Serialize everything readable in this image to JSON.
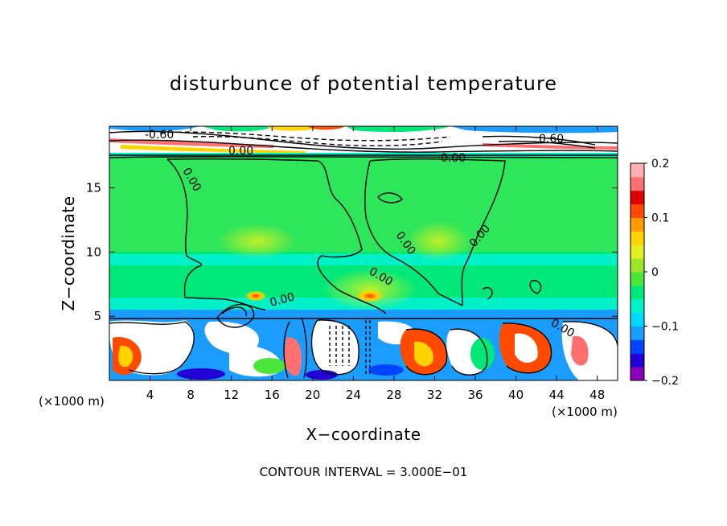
{
  "chart_data": {
    "type": "heatmap",
    "title": "disturbunce of potential temperature",
    "xlabel": "X−coordinate",
    "ylabel": "Z−coordinate",
    "x_unit_left": "(×1000 m)",
    "x_unit_right": "(×1000 m)",
    "xlim": [
      0,
      50
    ],
    "ylim": [
      0,
      19.8
    ],
    "x_ticks": [
      4,
      8,
      12,
      16,
      20,
      24,
      28,
      32,
      36,
      40,
      44,
      48
    ],
    "y_ticks": [
      5,
      10,
      15
    ],
    "colorbar": {
      "range": [
        -0.2,
        0.2
      ],
      "tick_values": [
        0.2,
        0.1,
        0,
        -0.1,
        -0.2
      ],
      "tick_labels": [
        "0.2",
        "0.1",
        "0",
        "−0.1",
        "−0.2"
      ],
      "colors": [
        "#8a00b8",
        "#2200d6",
        "#0044ff",
        "#1b9cff",
        "#00d8ff",
        "#00f0c8",
        "#00e87a",
        "#4be63a",
        "#9ee62b",
        "#e2f020",
        "#ffd400",
        "#ff9a00",
        "#ff4a00",
        "#e00000",
        "#ff7070",
        "#ffb0b0"
      ]
    },
    "contour_labels": [
      "-0.60",
      "0.60",
      "0.00",
      "0.00",
      "0.00",
      "0.00",
      "0.00",
      "0.00",
      "0.00",
      "0.00"
    ],
    "footer": "CONTOUR INTERVAL = 3.000E−01"
  }
}
